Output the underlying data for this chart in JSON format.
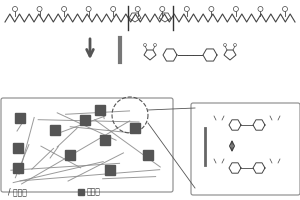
{
  "bg_color": "#f5f5f5",
  "arrow_color": "#555555",
  "line_color": "#333333",
  "box_color": "#cccccc",
  "dark_square_color": "#555555",
  "legend_text_1": "/ 分子链",
  "legend_text_2": "动态键",
  "title": ""
}
